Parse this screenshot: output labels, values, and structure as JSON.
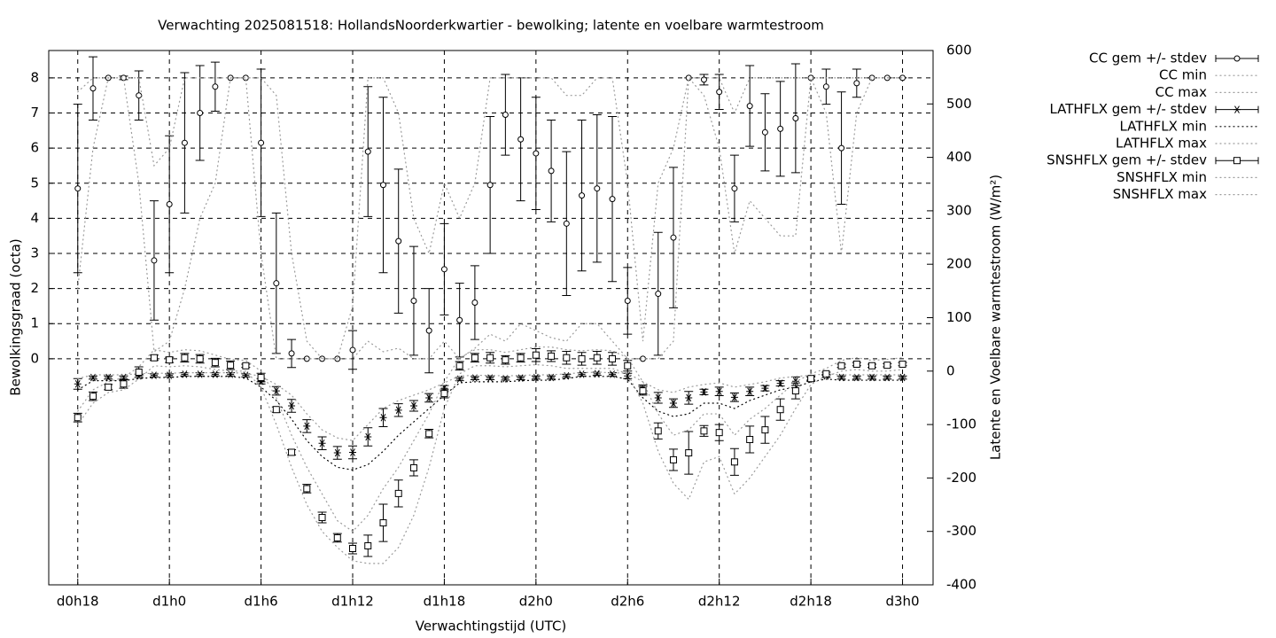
{
  "chart_data": {
    "type": "errorbar",
    "title": "Verwachting 2025081518: HollandsNoorderkwartier - bewolking; latente en voelbare warmtestroom",
    "x_label": "Verwachtingstijd (UTC)",
    "y_label": "Bewolkingsgraad (octa)",
    "y2_label": "Latente en Voelbare warmtestroom (W/m²)",
    "x": [
      0,
      1,
      2,
      3,
      4,
      5,
      6,
      7,
      8,
      9,
      10,
      11,
      12,
      13,
      14,
      15,
      16,
      17,
      18,
      19,
      20,
      21,
      22,
      23,
      24,
      25,
      26,
      27,
      28,
      29,
      30,
      31,
      32,
      33,
      34,
      35,
      36,
      37,
      38,
      39,
      40,
      41,
      42,
      43,
      44,
      45,
      46,
      47,
      48,
      49,
      50,
      51,
      52,
      53,
      54
    ],
    "xlim": [
      -1.9,
      56
    ],
    "xticks": [
      {
        "value": 0,
        "label": "d0h18"
      },
      {
        "value": 6,
        "label": "d1h0"
      },
      {
        "value": 12,
        "label": "d1h6"
      },
      {
        "value": 18,
        "label": "d1h12"
      },
      {
        "value": 24,
        "label": "d1h18"
      },
      {
        "value": 30,
        "label": "d2h0"
      },
      {
        "value": 36,
        "label": "d2h6"
      },
      {
        "value": 42,
        "label": "d2h12"
      },
      {
        "value": 48,
        "label": "d2h18"
      },
      {
        "value": 54,
        "label": "d3h0"
      }
    ],
    "ylim": [
      -6.44,
      8.78
    ],
    "yticks": [
      0,
      1,
      2,
      3,
      4,
      5,
      6,
      7,
      8
    ],
    "y2lim": [
      -400,
      600
    ],
    "y2ticks": [
      -400,
      -300,
      -200,
      -100,
      0,
      100,
      200,
      300,
      400,
      500,
      600
    ],
    "grid": true,
    "legend": "right",
    "series": [
      {
        "name": "CC gem +/- stdev",
        "style": "errorbars",
        "marker": "circle",
        "color": "#000000",
        "values": [
          4.85,
          7.7,
          8,
          8,
          7.5,
          2.8,
          4.4,
          6.15,
          7,
          7.75,
          8,
          8,
          6.15,
          2.15,
          0.15,
          0,
          0,
          0,
          0.25,
          5.9,
          4.95,
          3.35,
          1.65,
          0.8,
          2.55,
          1.1,
          1.6,
          4.95,
          6.95,
          6.25,
          5.85,
          5.35,
          3.85,
          4.65,
          4.85,
          4.55,
          1.65,
          0,
          1.85,
          3.45,
          8,
          7.95,
          7.6,
          4.85,
          7.2,
          6.45,
          6.55,
          6.85,
          8,
          7.75,
          6,
          7.85,
          8,
          8,
          8
        ],
        "errors": [
          2.4,
          0.9,
          0,
          0.05,
          0.7,
          1.7,
          1.95,
          2,
          1.35,
          0.7,
          0,
          0,
          2.1,
          2,
          0.4,
          0,
          0,
          0,
          0.55,
          1.85,
          2.5,
          2.05,
          1.55,
          1.2,
          1.3,
          1.05,
          1.05,
          1.95,
          1.15,
          1.75,
          1.6,
          1.45,
          2.05,
          2.15,
          2.1,
          2.35,
          0.95,
          0,
          1.75,
          2,
          0,
          0.15,
          0.5,
          0.95,
          1.15,
          1.1,
          1.35,
          1.55,
          0,
          0.5,
          1.6,
          0.4,
          0,
          0,
          0
        ]
      },
      {
        "name": "CC min",
        "style": "dots",
        "color": "#9a9a9a",
        "values": [
          2,
          6,
          8,
          8,
          5,
          0.2,
          0.5,
          2,
          4,
          5,
          8,
          8,
          3,
          0,
          0,
          0,
          0,
          0,
          0,
          0.5,
          0.2,
          0.3,
          0,
          0,
          0.5,
          0,
          0.3,
          0.7,
          0.5,
          1,
          0.8,
          0.6,
          0.5,
          1,
          1,
          0.5,
          0,
          0,
          0,
          0.5,
          8,
          7.5,
          6,
          3,
          4.5,
          4,
          3.5,
          3.5,
          8,
          7,
          3,
          7,
          8,
          8,
          8
        ]
      },
      {
        "name": "CC max",
        "style": "dots",
        "color": "#9a9a9a",
        "values": [
          7.6,
          8,
          8,
          8,
          8,
          5.5,
          6,
          8,
          8,
          8,
          8,
          8,
          8,
          7.5,
          3,
          0.5,
          0,
          0,
          1.5,
          8,
          8,
          7,
          4,
          3,
          5,
          4,
          5,
          8,
          8,
          8,
          8,
          8,
          7.5,
          7.5,
          8,
          8,
          5,
          0.5,
          5,
          6,
          8,
          8,
          8,
          7,
          8,
          8,
          8,
          8,
          8,
          8,
          8,
          8,
          8,
          8,
          8
        ]
      },
      {
        "name": "LATHFLX gem +/- stdev",
        "style": "errorbars",
        "marker": "asterisk",
        "axis": "y2",
        "color": "#000000",
        "values": [
          -24,
          -12,
          -12,
          -12,
          -9,
          -8,
          -8,
          -6,
          -6,
          -6,
          -6,
          -8,
          -19,
          -37,
          -65,
          -103,
          -135,
          -153,
          -152,
          -123,
          -87,
          -73,
          -65,
          -50,
          -32,
          -15,
          -13,
          -13,
          -14,
          -13,
          -12,
          -12,
          -9,
          -6,
          -5,
          -6,
          -9,
          -34,
          -50,
          -60,
          -50,
          -39,
          -38,
          -49,
          -38,
          -32,
          -23,
          -19,
          -14,
          -9,
          -12,
          -12,
          -12,
          -12,
          -12
        ],
        "errors": [
          10,
          3,
          3,
          3,
          3,
          3,
          3,
          3,
          3,
          3,
          3,
          3,
          5,
          8,
          12,
          12,
          12,
          12,
          12,
          17,
          17,
          12,
          10,
          8,
          5,
          3,
          3,
          3,
          3,
          3,
          3,
          3,
          3,
          3,
          3,
          3,
          5,
          8,
          10,
          8,
          12,
          5,
          8,
          8,
          8,
          5,
          5,
          8,
          3,
          3,
          3,
          3,
          3,
          3,
          3
        ]
      },
      {
        "name": "LATHFLX min",
        "style": "dots",
        "axis": "y2",
        "color": "#000000",
        "values": [
          -35,
          -18,
          -18,
          -18,
          -14,
          -12,
          -12,
          -10,
          -10,
          -10,
          -10,
          -13,
          -30,
          -55,
          -90,
          -130,
          -160,
          -180,
          -185,
          -175,
          -150,
          -120,
          -95,
          -70,
          -45,
          -22,
          -20,
          -20,
          -20,
          -18,
          -17,
          -17,
          -14,
          -10,
          -10,
          -10,
          -15,
          -50,
          -75,
          -85,
          -80,
          -60,
          -60,
          -70,
          -55,
          -45,
          -35,
          -30,
          -20,
          -15,
          -17,
          -17,
          -17,
          -17,
          -17
        ]
      },
      {
        "name": "LATHFLX max",
        "style": "dots",
        "axis": "y2",
        "color": "#9a9a9a",
        "values": [
          -14,
          -7,
          -7,
          -7,
          -5,
          -4,
          -4,
          -3,
          -3,
          -3,
          -3,
          -4,
          -10,
          -25,
          -45,
          -80,
          -110,
          -125,
          -130,
          -100,
          -70,
          -55,
          -45,
          -35,
          -22,
          -9,
          -8,
          -8,
          -9,
          -8,
          -7,
          -7,
          -5,
          -3,
          -2,
          -3,
          -4,
          -20,
          -35,
          -40,
          -30,
          -25,
          -22,
          -30,
          -25,
          -20,
          -13,
          -10,
          -8,
          -5,
          -7,
          -7,
          -7,
          -7,
          -7
        ]
      },
      {
        "name": "SNSHFLX gem +/- stdev",
        "style": "errorbars",
        "marker": "square",
        "axis": "y2",
        "color": "#000000",
        "values": [
          -87,
          -47,
          -30,
          -24,
          -2,
          25,
          21,
          25,
          23,
          16,
          11,
          10,
          -12,
          -72,
          -152,
          -220,
          -274,
          -312,
          -332,
          -327,
          -284,
          -229,
          -181,
          -117,
          -42,
          10,
          25,
          25,
          21,
          25,
          30,
          28,
          25,
          23,
          25,
          23,
          10,
          -37,
          -112,
          -166,
          -153,
          -112,
          -115,
          -170,
          -128,
          -110,
          -72,
          -37,
          -14,
          -5,
          10,
          13,
          10,
          11,
          13
        ],
        "errors": [
          8,
          8,
          5,
          8,
          10,
          5,
          5,
          8,
          8,
          8,
          8,
          3,
          8,
          5,
          5,
          8,
          10,
          8,
          10,
          20,
          35,
          25,
          15,
          8,
          8,
          8,
          8,
          10,
          8,
          8,
          12,
          10,
          12,
          12,
          12,
          12,
          10,
          8,
          15,
          20,
          40,
          10,
          15,
          25,
          25,
          25,
          20,
          15,
          5,
          3,
          3,
          3,
          3,
          3,
          3
        ]
      },
      {
        "name": "SNSHFLX min",
        "style": "dots",
        "axis": "y2",
        "color": "#9a9a9a",
        "values": [
          -100,
          -60,
          -40,
          -35,
          -15,
          10,
          8,
          10,
          8,
          3,
          0,
          0,
          -30,
          -100,
          -180,
          -250,
          -300,
          -330,
          -355,
          -360,
          -360,
          -330,
          -270,
          -180,
          -70,
          -5,
          10,
          10,
          8,
          10,
          12,
          10,
          5,
          5,
          5,
          5,
          -5,
          -60,
          -150,
          -210,
          -240,
          -170,
          -160,
          -230,
          -200,
          -160,
          -120,
          -70,
          -25,
          -10,
          0,
          3,
          0,
          0,
          3
        ]
      },
      {
        "name": "SNSHFLX max",
        "style": "dots",
        "axis": "y2",
        "color": "#9a9a9a",
        "values": [
          -75,
          -35,
          -20,
          -12,
          8,
          40,
          35,
          40,
          38,
          30,
          22,
          20,
          0,
          -50,
          -120,
          -180,
          -230,
          -280,
          -300,
          -270,
          -220,
          -180,
          -130,
          -80,
          -20,
          25,
          40,
          40,
          35,
          40,
          45,
          45,
          40,
          38,
          40,
          38,
          25,
          -20,
          -80,
          -120,
          -110,
          -80,
          -80,
          -120,
          -90,
          -70,
          -45,
          -20,
          -5,
          5,
          20,
          25,
          20,
          22,
          25
        ]
      }
    ]
  }
}
